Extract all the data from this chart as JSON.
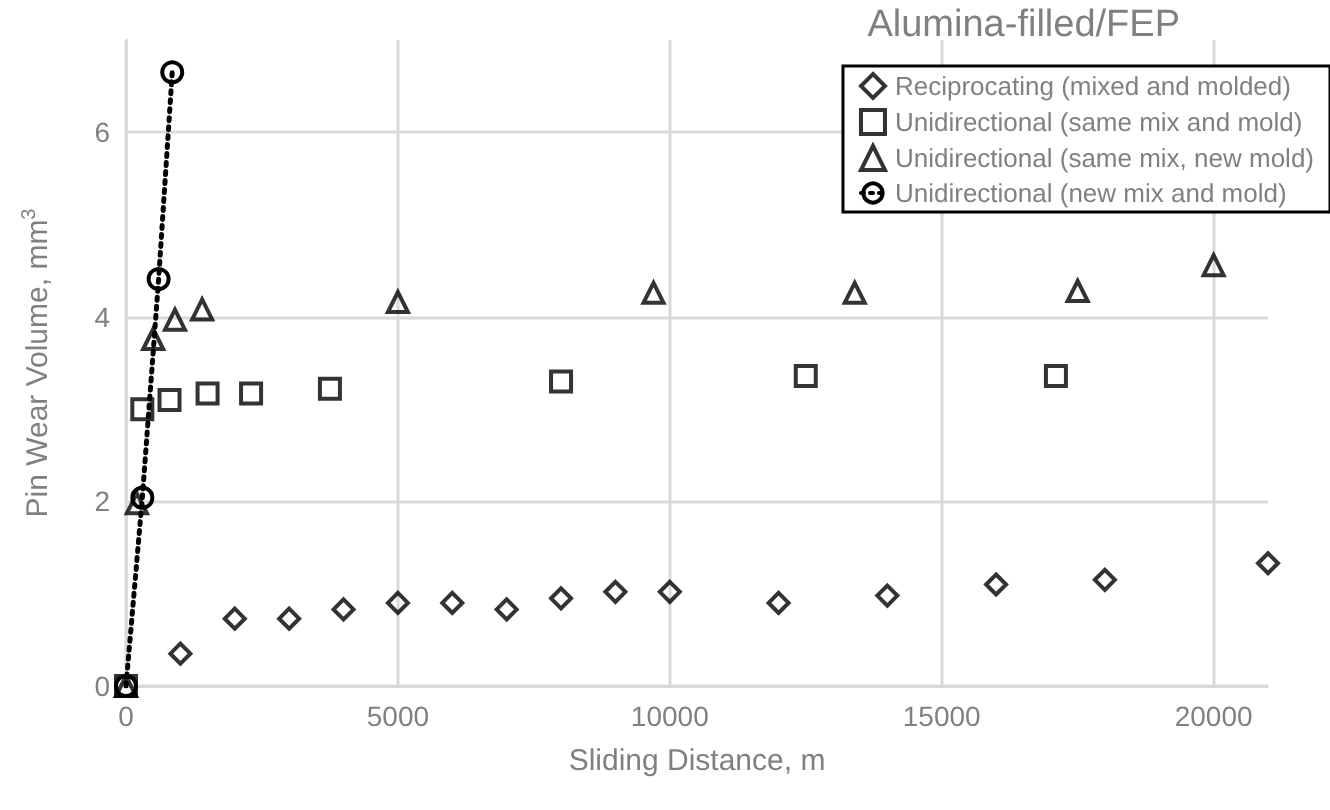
{
  "chart_data": {
    "type": "scatter",
    "title": "Alumina-filled/FEP",
    "xlabel": "Sliding Distance, m",
    "ylabel": "Pin Wear Volume, mm$^{3}$",
    "xlim": [
      0,
      21000
    ],
    "xticks": [
      0,
      {
        "value": 5000,
        "label": "5000"
      },
      {
        "value": 10000,
        "label": "10000"
      },
      {
        "value": 15000,
        "label": "15000"
      },
      {
        "value": 20000,
        "label": "20000"
      }
    ],
    "ylim": [
      0,
      7
    ],
    "yticks": [
      0,
      2,
      4,
      6
    ],
    "grid": true,
    "legend": "top right",
    "series": [
      {
        "name": "Reciprocating (mixed and molded)",
        "marker": "diamond",
        "color": "#000000",
        "x": [
          1000,
          2000,
          3000,
          4000,
          5000,
          6000,
          7000,
          8000,
          9000,
          10000,
          12000,
          14000,
          16000,
          18000,
          21000
        ],
        "values": [
          0.35,
          0.73,
          0.73,
          0.83,
          0.9,
          0.9,
          0.83,
          0.95,
          1.02,
          1.02,
          0.9,
          0.98,
          1.1,
          1.15,
          1.33
        ]
      },
      {
        "name": "Unidirectional (same mix and mold)",
        "marker": "square",
        "color": "#000000",
        "x": [
          0,
          300,
          800,
          1500,
          2300,
          3750,
          8000,
          12500,
          17100
        ],
        "values": [
          0,
          3.0,
          3.1,
          3.17,
          3.17,
          3.22,
          3.3,
          3.36,
          3.36
        ]
      },
      {
        "name": "Unidirectional (same mix, new mold)",
        "marker": "triangle",
        "color": "#000000",
        "x": [
          0,
          200,
          500,
          900,
          1400,
          5000,
          9700,
          13400,
          17500,
          20000
        ],
        "values": [
          0,
          1.98,
          3.76,
          3.97,
          4.08,
          4.16,
          4.26,
          4.26,
          4.28,
          4.56
        ]
      },
      {
        "name": "Unidirectional (new mix and mold)",
        "type": "line",
        "marker": "circle",
        "line_style": "dotted",
        "color": "#000000",
        "x": [
          0,
          300,
          600,
          850
        ],
        "values": [
          0,
          2.04,
          4.41,
          6.65
        ]
      }
    ]
  }
}
